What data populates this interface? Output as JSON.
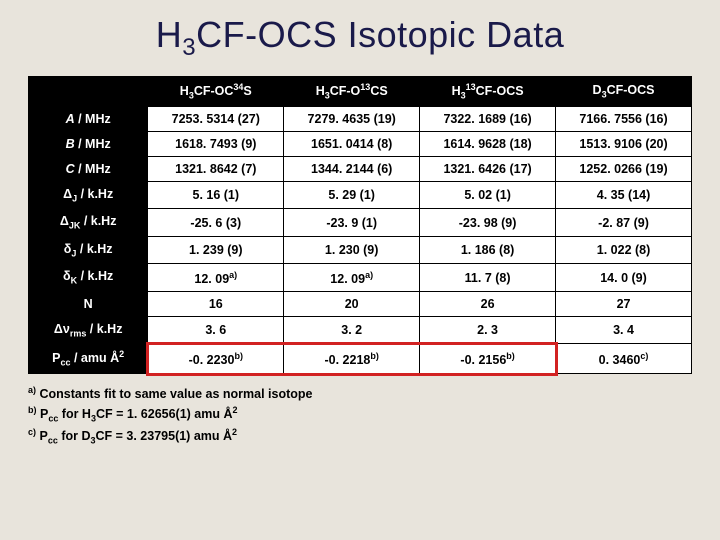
{
  "title_plain": "H3CF-OCS Isotopic Data",
  "headers": [
    "H3CF-OC34S",
    "H3CF-O13CS",
    "H313CF-OCS",
    "D3CF-OCS"
  ],
  "rows": [
    {
      "label": "A / MHz",
      "vals": [
        "7253. 5314 (27)",
        "7279. 4635 (19)",
        "7322. 1689 (16)",
        "7166. 7556 (16)"
      ]
    },
    {
      "label": "B / MHz",
      "vals": [
        "1618. 7493 (9)",
        "1651. 0414 (8)",
        "1614. 9628 (18)",
        "1513. 9106 (20)"
      ]
    },
    {
      "label": "C / MHz",
      "vals": [
        "1321. 8642 (7)",
        "1344. 2144 (6)",
        "1321. 6426 (17)",
        "1252. 0266 (19)"
      ]
    },
    {
      "label": "DJ / k.Hz",
      "vals": [
        "5. 16 (1)",
        "5. 29 (1)",
        "5. 02 (1)",
        "4. 35 (14)"
      ]
    },
    {
      "label": "DJK / k.Hz",
      "vals": [
        "-25. 6 (3)",
        "-23. 9 (1)",
        "-23. 98 (9)",
        "-2. 87 (9)"
      ]
    },
    {
      "label": "dJ / k.Hz",
      "vals": [
        "1. 239 (9)",
        "1. 230 (9)",
        "1. 186 (8)",
        "1. 022 (8)"
      ]
    },
    {
      "label": "dK / k.Hz",
      "vals": [
        "12. 09a)",
        "12. 09a)",
        "11. 7 (8)",
        "14. 0 (9)"
      ]
    },
    {
      "label": "N",
      "vals": [
        "16",
        "20",
        "26",
        "27"
      ]
    },
    {
      "label": "Dnrms / k.Hz",
      "vals": [
        "3. 6",
        "3. 2",
        "2. 3",
        "3. 4"
      ]
    },
    {
      "label": "Pcc / amu A2",
      "vals": [
        "-0. 2230b)",
        "-0. 2218b)",
        "-0. 2156b)",
        "0. 3460c)"
      ]
    }
  ],
  "footnotes": [
    "a) Constants fit to same value as normal isotope",
    "b) Pcc for H3CF = 1. 62656(1) amu A2",
    "c) Pcc for D3CF = 3. 23795(1) amu A2"
  ],
  "highlight": {
    "row_index": 9,
    "cols": [
      0,
      1,
      2
    ],
    "color": "#d22222"
  },
  "colors": {
    "bg": "#e8e4dc",
    "title": "#1a1a4a",
    "cell_bg": "#ffffff",
    "head_bg": "#000000"
  }
}
